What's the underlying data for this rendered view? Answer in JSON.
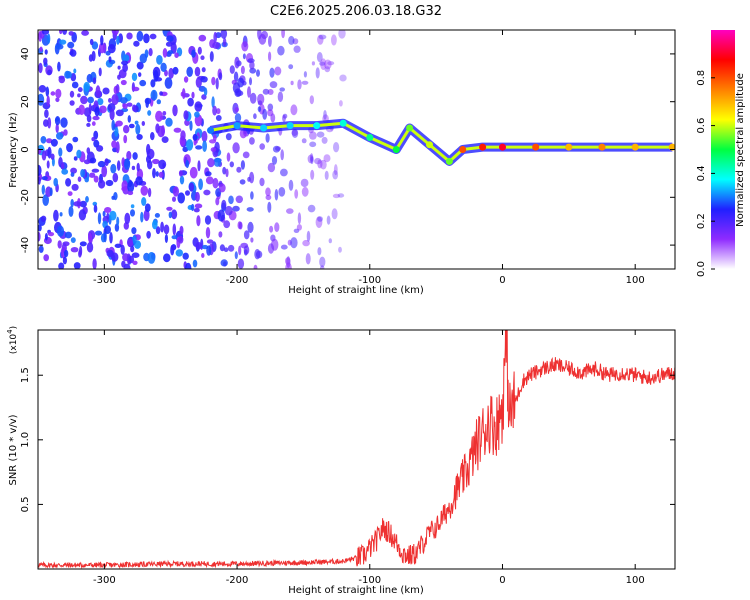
{
  "figure": {
    "title": "C2E6.2025.206.03.18.G32"
  },
  "chart_data": [
    {
      "type": "heatmap",
      "panel": "spectrogram",
      "xlabel": "Height of straight line (km)",
      "ylabel": "Frequency (Hz)",
      "xlim": [
        -350,
        130
      ],
      "ylim": [
        -50,
        50
      ],
      "x_ticks": [
        -300,
        -200,
        -100,
        0,
        100
      ],
      "y_ticks": [
        -40,
        -20,
        0,
        20,
        40
      ],
      "grid": false,
      "colorbar": {
        "label": "Normalized spectral amplitude",
        "range": [
          0.0,
          1.0
        ],
        "ticks": [
          0.0,
          0.2,
          0.4,
          0.6,
          0.8
        ],
        "tick_labels": [
          "0.0",
          "0.2",
          "0.4",
          "0.6",
          "0.8"
        ],
        "colormap": [
          "#ffffff",
          "#8f2bff",
          "#2020ff",
          "#00ffff",
          "#00ff40",
          "#ffff00",
          "#ff8000",
          "#ff0000",
          "#ff00c0"
        ]
      },
      "signal_track": [
        {
          "x": -220,
          "freq": 8,
          "amp": 0.3
        },
        {
          "x": -200,
          "freq": 10,
          "amp": 0.32
        },
        {
          "x": -180,
          "freq": 9,
          "amp": 0.35
        },
        {
          "x": -160,
          "freq": 10,
          "amp": 0.35
        },
        {
          "x": -140,
          "freq": 10,
          "amp": 0.38
        },
        {
          "x": -120,
          "freq": 11,
          "amp": 0.4
        },
        {
          "x": -100,
          "freq": 5,
          "amp": 0.45
        },
        {
          "x": -80,
          "freq": 0,
          "amp": 0.5
        },
        {
          "x": -70,
          "freq": 9,
          "amp": 0.55
        },
        {
          "x": -55,
          "freq": 2,
          "amp": 0.6
        },
        {
          "x": -40,
          "freq": -5,
          "amp": 0.55
        },
        {
          "x": -30,
          "freq": 0,
          "amp": 0.8
        },
        {
          "x": -15,
          "freq": 1,
          "amp": 0.85
        },
        {
          "x": 0,
          "freq": 1,
          "amp": 0.9
        },
        {
          "x": 25,
          "freq": 1,
          "amp": 0.8
        },
        {
          "x": 50,
          "freq": 1,
          "amp": 0.7
        },
        {
          "x": 75,
          "freq": 1,
          "amp": 0.75
        },
        {
          "x": 100,
          "freq": 1,
          "amp": 0.7
        },
        {
          "x": 128,
          "freq": 1,
          "amp": 0.7
        }
      ]
    },
    {
      "type": "line",
      "panel": "snr",
      "xlabel": "Height of straight line (km)",
      "ylabel": "SNR (10 * v/v)",
      "scale_label": "(x10",
      "scale_exponent": "4",
      "scale_suffix": ")",
      "xlim": [
        -350,
        130
      ],
      "ylim": [
        0,
        1.85
      ],
      "x_ticks": [
        -300,
        -200,
        -100,
        0,
        100
      ],
      "y_ticks": [
        0.5,
        1.0,
        1.5
      ],
      "y_tick_labels": [
        "0.5",
        "1.0",
        "1.5"
      ],
      "grid": false,
      "color": "#ee3030",
      "series": [
        {
          "x": [
            -350,
            -300,
            -250,
            -200,
            -150,
            -120,
            -105,
            -95,
            -90,
            -85,
            -80,
            -75,
            -70,
            -65,
            -60,
            -55,
            -50,
            -45,
            -40,
            -35,
            -30,
            -25,
            -20,
            -15,
            -10,
            -5,
            0,
            3,
            5,
            10,
            15,
            20,
            25,
            30,
            40,
            50,
            60,
            70,
            80,
            90,
            100,
            110,
            120,
            130
          ],
          "values": [
            0.03,
            0.03,
            0.04,
            0.04,
            0.05,
            0.06,
            0.1,
            0.22,
            0.32,
            0.28,
            0.2,
            0.12,
            0.1,
            0.12,
            0.2,
            0.28,
            0.32,
            0.4,
            0.48,
            0.6,
            0.7,
            0.8,
            0.95,
            1.05,
            1.15,
            1.1,
            1.25,
            1.8,
            1.2,
            1.3,
            1.45,
            1.5,
            1.52,
            1.55,
            1.58,
            1.55,
            1.52,
            1.55,
            1.5,
            1.52,
            1.5,
            1.48,
            1.5,
            1.52
          ]
        }
      ]
    }
  ]
}
